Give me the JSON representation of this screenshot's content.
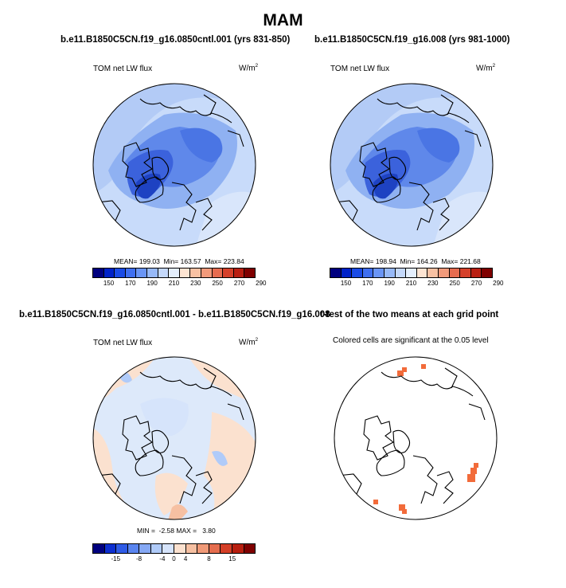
{
  "title": "MAM",
  "panels": {
    "top_left": {
      "title": "b.e11.B1850C5CN.f19_g16.0850cntl.001 (yrs 831-850)",
      "var": "TOM net LW flux",
      "units": "W/m",
      "units_exp": "2",
      "stats": "MEAN= 199.03  Min= 163.57  Max= 223.84"
    },
    "top_right": {
      "title": "b.e11.B1850C5CN.f19_g16.008 (yrs 981-1000)",
      "var": "TOM net LW flux",
      "units": "W/m",
      "units_exp": "2",
      "stats": "MEAN= 198.94  Min= 164.26  Max= 221.68"
    },
    "bottom_left": {
      "title": "b.e11.B1850C5CN.f19_g16.0850cntl.001 - b.e11.B1850C5CN.f19_g16.008",
      "var": "TOM net LW flux",
      "units": "W/m",
      "units_exp": "2",
      "stats": "MIN =  -2.58 MAX =   3.80"
    },
    "bottom_right": {
      "title": "t-test of the two means at each grid point",
      "note": "Colored cells are significant at the 0.05 level"
    }
  },
  "colorbars": {
    "field": {
      "colors": [
        "#00007f",
        "#0022c8",
        "#1a4be6",
        "#3f6ff0",
        "#6a95f5",
        "#97b9f8",
        "#c4d8fa",
        "#e4eefc",
        "#fde4d2",
        "#f8c1a3",
        "#f19a7b",
        "#e66c50",
        "#d5402a",
        "#b91f12",
        "#7f0000"
      ],
      "ticks": [
        "150",
        "170",
        "190",
        "210",
        "230",
        "250",
        "270",
        "290"
      ]
    },
    "diff": {
      "colors": [
        "#00007f",
        "#0d2fd0",
        "#2f5be6",
        "#5a85f0",
        "#86a9f5",
        "#b0cbf9",
        "#d6e4fb",
        "#fbe1cf",
        "#f6c0a2",
        "#f09a78",
        "#e56d4e",
        "#d43f27",
        "#b81f10",
        "#7f0000"
      ],
      "ticks": [
        "-15",
        "-8",
        "-4",
        "0",
        "4",
        "8",
        "15"
      ]
    }
  },
  "colors": {
    "sig_cells": "#f26b3a",
    "coast": "#000000",
    "ocean_base": "#c8dbfa",
    "diff_base": "#dde9fa"
  }
}
